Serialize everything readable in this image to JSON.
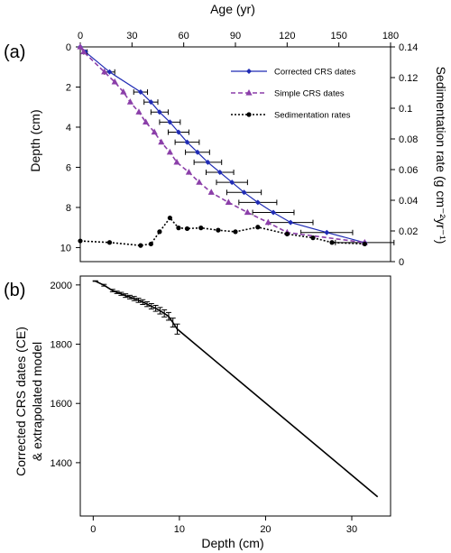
{
  "chart_data": [
    {
      "panel_label": "(a)",
      "type": "line",
      "xlabel": "Age (yr)",
      "xlim": [
        0,
        180
      ],
      "xticks": [
        0,
        30,
        60,
        90,
        120,
        150,
        180
      ],
      "xaxis_position": "top",
      "ylabel": "Depth (cm)",
      "ylim": [
        0,
        10.7
      ],
      "yticks": [
        0,
        2,
        4,
        6,
        8,
        10
      ],
      "y_inverted": true,
      "y2label": "Sedimentation rate (g cm⁻²yr⁻¹)",
      "y2lim": [
        0,
        0.14
      ],
      "y2ticks": [
        0,
        0.02,
        0.04,
        0.06,
        0.08,
        0.1,
        0.12,
        0.14
      ],
      "legend_position": "upper-right",
      "grid": false,
      "series": [
        {
          "name": "Corrected CRS dates",
          "color": "#1f2bb4",
          "style": "solid",
          "marker": "diamond",
          "axis": "left",
          "points": [
            {
              "x": 0,
              "y": 0,
              "err": 0
            },
            {
              "x": 3,
              "y": 0.25,
              "err": 1
            },
            {
              "x": 17,
              "y": 1.25,
              "err": 3
            },
            {
              "x": 35,
              "y": 2.25,
              "err": 4
            },
            {
              "x": 41,
              "y": 2.75,
              "err": 4
            },
            {
              "x": 46,
              "y": 3.25,
              "err": 5
            },
            {
              "x": 52,
              "y": 3.75,
              "err": 6
            },
            {
              "x": 57,
              "y": 4.25,
              "err": 6
            },
            {
              "x": 62,
              "y": 4.75,
              "err": 7
            },
            {
              "x": 68,
              "y": 5.25,
              "err": 7
            },
            {
              "x": 74,
              "y": 5.75,
              "err": 8
            },
            {
              "x": 81,
              "y": 6.25,
              "err": 8
            },
            {
              "x": 88,
              "y": 6.75,
              "err": 9
            },
            {
              "x": 95,
              "y": 7.25,
              "err": 10
            },
            {
              "x": 103,
              "y": 7.75,
              "err": 11
            },
            {
              "x": 112,
              "y": 8.25,
              "err": 12
            },
            {
              "x": 122,
              "y": 8.75,
              "err": 13
            },
            {
              "x": 143,
              "y": 9.25,
              "err": 15
            },
            {
              "x": 165,
              "y": 9.75,
              "err": 17
            }
          ]
        },
        {
          "name": "Simple CRS dates",
          "color": "#8b3fa9",
          "style": "dashed",
          "marker": "triangle",
          "axis": "left",
          "points": [
            {
              "x": 0,
              "y": 0
            },
            {
              "x": 2,
              "y": 0.25
            },
            {
              "x": 14,
              "y": 1.25
            },
            {
              "x": 20,
              "y": 1.75
            },
            {
              "x": 25,
              "y": 2.25
            },
            {
              "x": 29,
              "y": 2.75
            },
            {
              "x": 34,
              "y": 3.25
            },
            {
              "x": 38,
              "y": 3.75
            },
            {
              "x": 43,
              "y": 4.25
            },
            {
              "x": 47,
              "y": 4.75
            },
            {
              "x": 52,
              "y": 5.25
            },
            {
              "x": 56,
              "y": 5.75
            },
            {
              "x": 63,
              "y": 6.25
            },
            {
              "x": 69,
              "y": 6.75
            },
            {
              "x": 76,
              "y": 7.25
            },
            {
              "x": 86,
              "y": 7.75
            },
            {
              "x": 97,
              "y": 8.25
            },
            {
              "x": 109,
              "y": 8.75
            },
            {
              "x": 120,
              "y": 9.25
            },
            {
              "x": 165,
              "y": 9.75
            }
          ]
        },
        {
          "name": "Sedimentation rates",
          "color": "#000000",
          "style": "dotted",
          "marker": "circle",
          "axis": "right",
          "points": [
            {
              "x": 0,
              "y": 0.0135
            },
            {
              "x": 17,
              "y": 0.0125
            },
            {
              "x": 35,
              "y": 0.0105
            },
            {
              "x": 41,
              "y": 0.0115
            },
            {
              "x": 46,
              "y": 0.0195
            },
            {
              "x": 52,
              "y": 0.0285
            },
            {
              "x": 57,
              "y": 0.022
            },
            {
              "x": 62,
              "y": 0.0215
            },
            {
              "x": 70,
              "y": 0.022
            },
            {
              "x": 80,
              "y": 0.0205
            },
            {
              "x": 90,
              "y": 0.0195
            },
            {
              "x": 103,
              "y": 0.0225
            },
            {
              "x": 120,
              "y": 0.018
            },
            {
              "x": 135,
              "y": 0.0155
            },
            {
              "x": 146,
              "y": 0.0125
            },
            {
              "x": 165,
              "y": 0.0115
            }
          ]
        }
      ]
    },
    {
      "panel_label": "(b)",
      "type": "line",
      "xlabel": "Depth (cm)",
      "xlim": [
        -1.5,
        34.5
      ],
      "xticks": [
        0,
        10,
        20,
        30
      ],
      "ylabel_lines": [
        "Corrected CRS dates (CE)",
        "& extrapolated model"
      ],
      "ylim": [
        1220,
        2030
      ],
      "yticks": [
        1400,
        1600,
        1800,
        2000
      ],
      "grid": false,
      "series": [
        {
          "name": "",
          "color": "#000000",
          "style": "solid",
          "points": [
            {
              "x": 0.25,
              "y": 2013,
              "err": 1
            },
            {
              "x": 1.25,
              "y": 1999,
              "err": 3
            },
            {
              "x": 2.25,
              "y": 1981,
              "err": 4
            },
            {
              "x": 2.75,
              "y": 1975,
              "err": 4
            },
            {
              "x": 3.25,
              "y": 1970,
              "err": 5
            },
            {
              "x": 3.75,
              "y": 1964,
              "err": 6
            },
            {
              "x": 4.25,
              "y": 1959,
              "err": 6
            },
            {
              "x": 4.75,
              "y": 1954,
              "err": 7
            },
            {
              "x": 5.25,
              "y": 1948,
              "err": 7
            },
            {
              "x": 5.75,
              "y": 1942,
              "err": 8
            },
            {
              "x": 6.25,
              "y": 1935,
              "err": 8
            },
            {
              "x": 6.75,
              "y": 1928,
              "err": 9
            },
            {
              "x": 7.25,
              "y": 1921,
              "err": 10
            },
            {
              "x": 7.75,
              "y": 1913,
              "err": 11
            },
            {
              "x": 8.25,
              "y": 1904,
              "err": 12
            },
            {
              "x": 8.75,
              "y": 1894,
              "err": 13
            },
            {
              "x": 9.25,
              "y": 1873,
              "err": 15
            },
            {
              "x": 9.75,
              "y": 1851,
              "err": 17
            },
            {
              "x": 33,
              "y": 1285,
              "err": 0
            }
          ]
        }
      ]
    }
  ]
}
